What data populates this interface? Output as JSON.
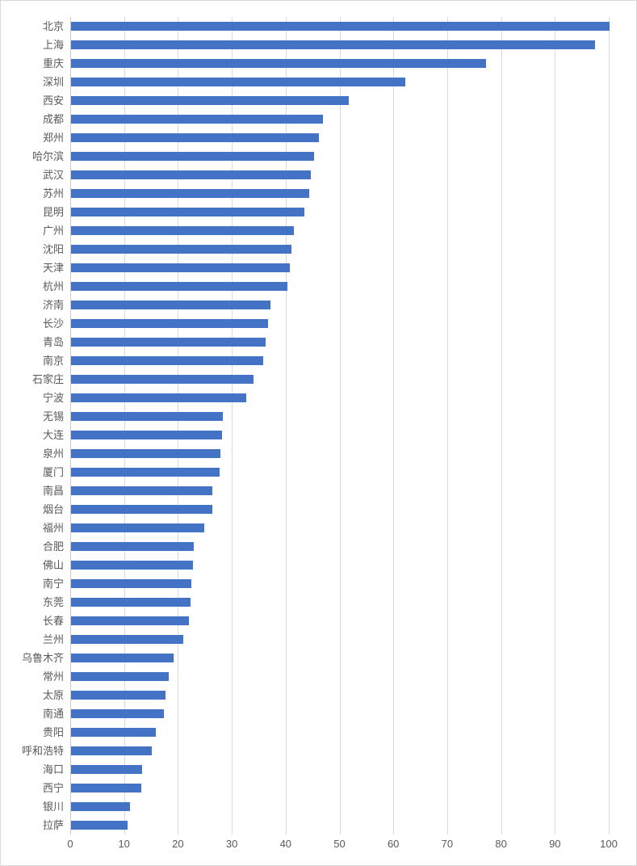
{
  "chart_data": {
    "type": "bar",
    "orientation": "horizontal",
    "title": "",
    "xlabel": "",
    "ylabel": "",
    "xlim": [
      0,
      100
    ],
    "x_ticks": [
      0,
      10,
      20,
      30,
      40,
      50,
      60,
      70,
      80,
      90,
      100
    ],
    "grid": true,
    "legend": false,
    "bar_color": "#4472c4",
    "gridline_color": "#d9d9d9",
    "axis_line_color": "#c9c9c9",
    "label_color": "#595959",
    "categories": [
      "北京",
      "上海",
      "重庆",
      "深圳",
      "西安",
      "成都",
      "郑州",
      "哈尔滨",
      "武汉",
      "苏州",
      "昆明",
      "广州",
      "沈阳",
      "天津",
      "杭州",
      "济南",
      "长沙",
      "青岛",
      "南京",
      "石家庄",
      "宁波",
      "无锡",
      "大连",
      "泉州",
      "厦门",
      "南昌",
      "烟台",
      "福州",
      "合肥",
      "佛山",
      "南宁",
      "东莞",
      "长春",
      "兰州",
      "乌鲁木齐",
      "常州",
      "太原",
      "南通",
      "贵阳",
      "呼和浩特",
      "海口",
      "西宁",
      "银川",
      "拉萨"
    ],
    "values": [
      100,
      97.3,
      77,
      62,
      51.6,
      46.8,
      46,
      45.1,
      44.6,
      44.2,
      43.4,
      41.4,
      41,
      40.7,
      40.2,
      37,
      36.6,
      36.1,
      35.7,
      33.9,
      32.6,
      28.2,
      28.1,
      27.8,
      27.6,
      26.3,
      26.2,
      24.7,
      22.8,
      22.6,
      22.4,
      22.2,
      21.9,
      20.8,
      19,
      18.2,
      17.6,
      17.3,
      15.7,
      15,
      13.2,
      13,
      11,
      10.5
    ]
  }
}
